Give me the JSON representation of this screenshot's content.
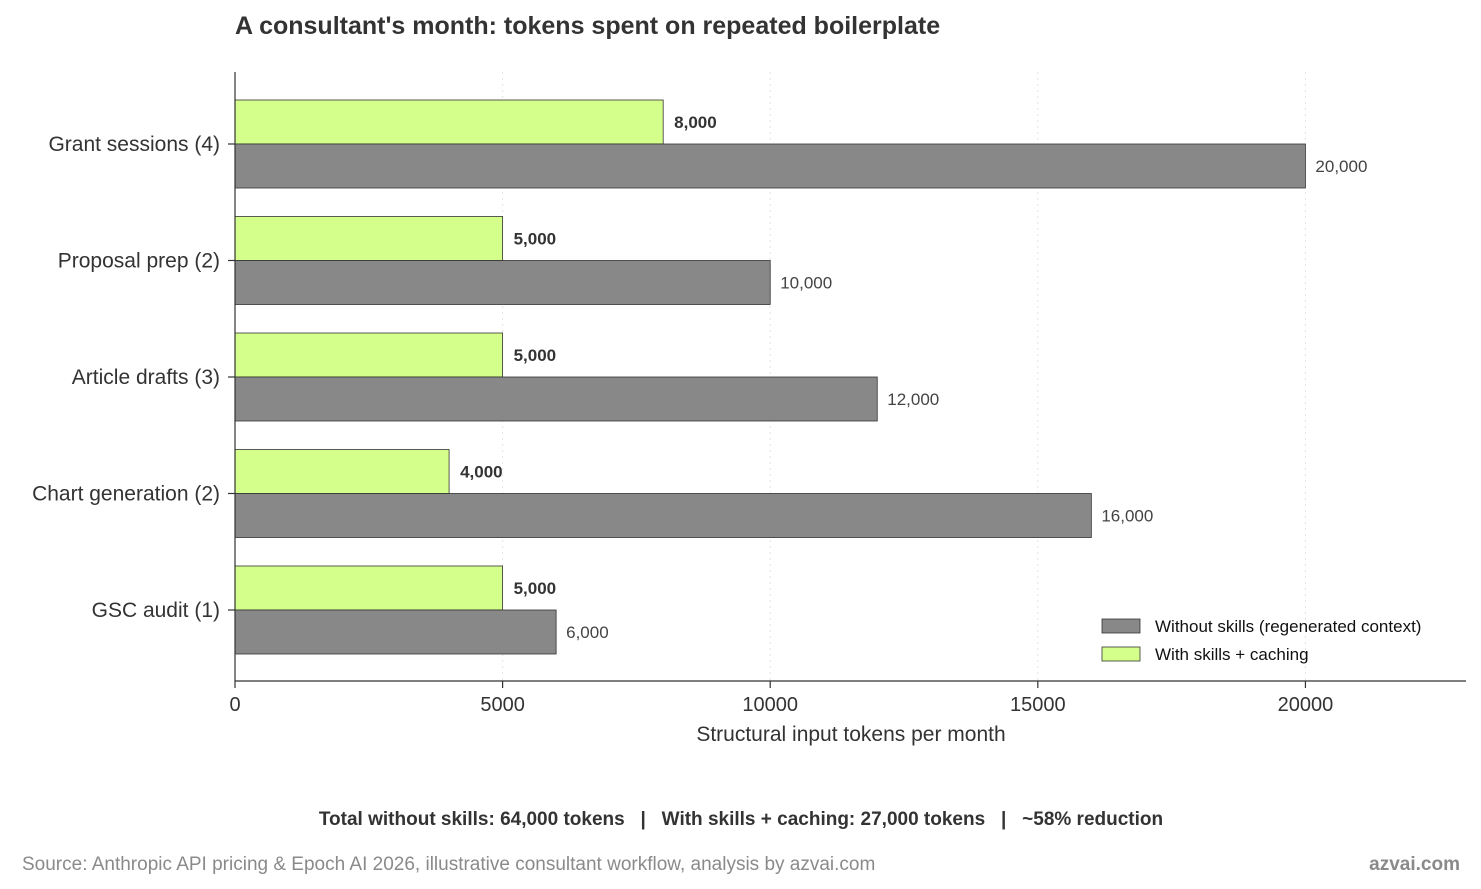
{
  "chart_data": {
    "type": "bar",
    "orientation": "horizontal",
    "title": "A consultant's month: tokens spent on repeated boilerplate",
    "xlabel": "Structural input tokens per month",
    "ylabel": "",
    "categories": [
      "Grant sessions (4)",
      "Proposal prep (2)",
      "Article drafts (3)",
      "Chart generation (2)",
      "GSC audit (1)"
    ],
    "series": [
      {
        "name": "Without skills (regenerated context)",
        "color": "#888888",
        "values": [
          20000,
          10000,
          12000,
          16000,
          6000
        ],
        "value_labels": [
          "20,000",
          "10,000",
          "12,000",
          "16,000",
          "6,000"
        ]
      },
      {
        "name": "With skills + caching",
        "color": "#d4ff8a",
        "values": [
          8000,
          5000,
          5000,
          4000,
          5000
        ],
        "value_labels": [
          "8,000",
          "5,000",
          "5,000",
          "4,000",
          "5,000"
        ]
      }
    ],
    "xlim": [
      0,
      23000
    ],
    "xticks": [
      0,
      5000,
      10000,
      15000,
      20000
    ],
    "xtick_labels": [
      "0",
      "5000",
      "10000",
      "15000",
      "20000"
    ],
    "grid": "x-dotted",
    "legend_position": "lower-right"
  },
  "summary": "Total without skills: 64,000 tokens   |   With skills + caching: 27,000 tokens   |   ~58% reduction",
  "source": "Source: Anthropic API pricing & Epoch AI 2026, illustrative consultant workflow, analysis by azvai.com",
  "brand": "azvai.com"
}
